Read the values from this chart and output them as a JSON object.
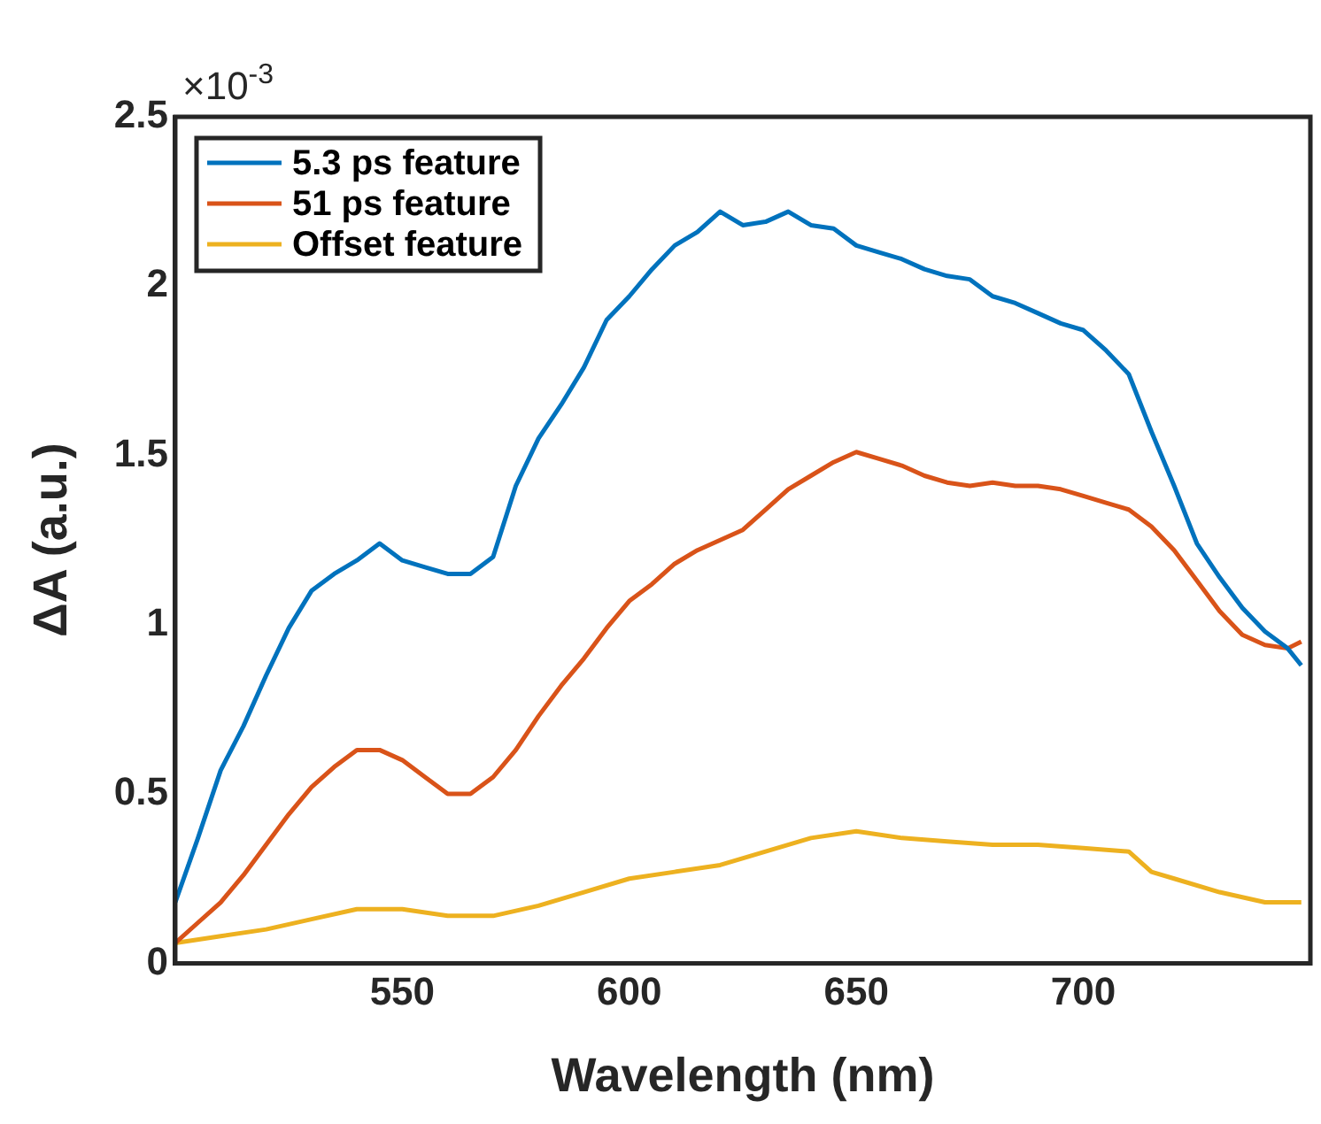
{
  "chart_data": {
    "type": "line",
    "xlabel": "Wavelength (nm)",
    "ylabel": "ΔA (a.u.)",
    "annotations": [
      "×10$^{-3}$"
    ],
    "xlim": [
      500,
      750
    ],
    "xticks": [
      550,
      600,
      650,
      700
    ],
    "ylim": [
      0,
      2.5
    ],
    "yticks": [
      0,
      0.5,
      1,
      1.5,
      2,
      2.5
    ],
    "grid": false,
    "legend": "top left",
    "marker": "none",
    "line_style": "solid",
    "series": [
      {
        "name": "5.3 ps feature",
        "color": "#0072bd",
        "x": [
          500,
          505,
          510,
          515,
          520,
          525,
          530,
          535,
          540,
          545,
          550,
          555,
          560,
          565,
          570,
          575,
          580,
          585,
          590,
          595,
          600,
          605,
          610,
          615,
          620,
          625,
          630,
          635,
          640,
          645,
          650,
          655,
          660,
          665,
          670,
          675,
          680,
          685,
          690,
          695,
          700,
          705,
          710,
          715,
          720,
          725,
          730,
          735,
          740,
          745,
          748
        ],
        "values": [
          0.18,
          0.37,
          0.57,
          0.7,
          0.85,
          0.99,
          1.1,
          1.15,
          1.19,
          1.24,
          1.19,
          1.17,
          1.15,
          1.15,
          1.2,
          1.41,
          1.55,
          1.65,
          1.76,
          1.9,
          1.97,
          2.05,
          2.12,
          2.16,
          2.22,
          2.18,
          2.19,
          2.22,
          2.18,
          2.17,
          2.12,
          2.1,
          2.08,
          2.05,
          2.03,
          2.02,
          1.97,
          1.95,
          1.92,
          1.89,
          1.87,
          1.81,
          1.74,
          1.57,
          1.41,
          1.24,
          1.14,
          1.05,
          0.98,
          0.93,
          0.88
        ]
      },
      {
        "name": "51 ps feature",
        "color": "#d95319",
        "x": [
          500,
          505,
          510,
          515,
          520,
          525,
          530,
          535,
          540,
          545,
          550,
          555,
          560,
          565,
          570,
          575,
          580,
          585,
          590,
          595,
          600,
          605,
          610,
          615,
          620,
          625,
          630,
          635,
          640,
          645,
          650,
          655,
          660,
          665,
          670,
          675,
          680,
          685,
          690,
          695,
          700,
          705,
          710,
          715,
          720,
          725,
          730,
          735,
          740,
          745,
          748
        ],
        "values": [
          0.06,
          0.12,
          0.18,
          0.26,
          0.35,
          0.44,
          0.52,
          0.58,
          0.63,
          0.63,
          0.6,
          0.55,
          0.5,
          0.5,
          0.55,
          0.63,
          0.73,
          0.82,
          0.9,
          0.99,
          1.07,
          1.12,
          1.18,
          1.22,
          1.25,
          1.28,
          1.34,
          1.4,
          1.44,
          1.48,
          1.51,
          1.49,
          1.47,
          1.44,
          1.42,
          1.41,
          1.42,
          1.41,
          1.41,
          1.4,
          1.38,
          1.36,
          1.34,
          1.29,
          1.22,
          1.13,
          1.04,
          0.97,
          0.94,
          0.93,
          0.95
        ]
      },
      {
        "name": "Offset feature",
        "color": "#edb120",
        "x": [
          500,
          510,
          520,
          530,
          540,
          550,
          560,
          570,
          580,
          590,
          600,
          610,
          620,
          630,
          640,
          650,
          660,
          670,
          680,
          690,
          700,
          710,
          715,
          720,
          730,
          740,
          748
        ],
        "values": [
          0.06,
          0.08,
          0.1,
          0.13,
          0.16,
          0.16,
          0.14,
          0.14,
          0.17,
          0.21,
          0.25,
          0.27,
          0.29,
          0.33,
          0.37,
          0.39,
          0.37,
          0.36,
          0.35,
          0.35,
          0.34,
          0.33,
          0.27,
          0.25,
          0.21,
          0.18,
          0.18
        ]
      }
    ]
  }
}
